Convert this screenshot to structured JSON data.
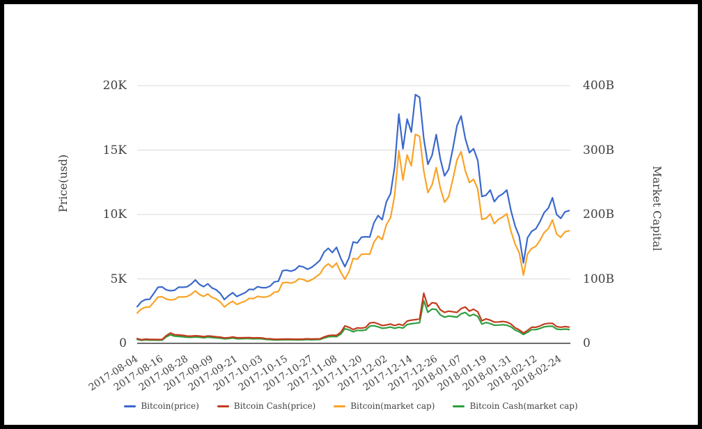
{
  "chart_data": {
    "type": "line",
    "title": "",
    "xlabel": "",
    "ylabel_left": "Price(usd)",
    "ylabel_right": "Market Capital",
    "grid": true,
    "legend_position": "bottom",
    "colors": {
      "bitcoin_price": "#3a68cc",
      "bitcoin_cash_price": "#c23b1c",
      "bitcoin_market_cap": "#f9a326",
      "bitcoin_cash_market_cap": "#2d9e3e",
      "gridline": "#d9d9d9",
      "axis_line": "#3c3c3c",
      "text": "#3f3f3f"
    },
    "left_axis": {
      "min": 0,
      "max": 20000,
      "ticks": [
        {
          "label": "0",
          "value": 0
        },
        {
          "label": "5K",
          "value": 5000
        },
        {
          "label": "10K",
          "value": 10000
        },
        {
          "label": "15K",
          "value": 15000
        },
        {
          "label": "20K",
          "value": 20000
        }
      ]
    },
    "right_axis": {
      "min": 0,
      "max": 400,
      "ticks": [
        {
          "label": "0",
          "value": 0
        },
        {
          "label": "100B",
          "value": 100
        },
        {
          "label": "200B",
          "value": 200
        },
        {
          "label": "300B",
          "value": 300
        },
        {
          "label": "400B",
          "value": 400
        }
      ]
    },
    "x_tick_labels": [
      "2017-08-04",
      "2017-08-16",
      "2017-08-28",
      "2017-09-09",
      "2017-09-21",
      "2017-10-03",
      "2017-10-15",
      "2017-10-27",
      "2017-11-08",
      "2017-11-20",
      "2017-12-02",
      "2017-12-14",
      "2017-12-26",
      "2018-01-07",
      "2018-01-19",
      "2018-01-31",
      "2018-02-12",
      "2018-02-24"
    ],
    "x_dates": [
      "2017-08-04",
      "2017-08-06",
      "2017-08-08",
      "2017-08-10",
      "2017-08-12",
      "2017-08-14",
      "2017-08-16",
      "2017-08-18",
      "2017-08-20",
      "2017-08-22",
      "2017-08-24",
      "2017-08-26",
      "2017-08-28",
      "2017-08-30",
      "2017-09-01",
      "2017-09-03",
      "2017-09-05",
      "2017-09-07",
      "2017-09-09",
      "2017-09-11",
      "2017-09-13",
      "2017-09-15",
      "2017-09-17",
      "2017-09-19",
      "2017-09-21",
      "2017-09-23",
      "2017-09-25",
      "2017-09-27",
      "2017-09-29",
      "2017-10-01",
      "2017-10-03",
      "2017-10-05",
      "2017-10-07",
      "2017-10-09",
      "2017-10-11",
      "2017-10-13",
      "2017-10-15",
      "2017-10-17",
      "2017-10-19",
      "2017-10-21",
      "2017-10-23",
      "2017-10-25",
      "2017-10-27",
      "2017-10-29",
      "2017-10-31",
      "2017-11-02",
      "2017-11-04",
      "2017-11-06",
      "2017-11-08",
      "2017-11-10",
      "2017-11-12",
      "2017-11-14",
      "2017-11-16",
      "2017-11-18",
      "2017-11-20",
      "2017-11-22",
      "2017-11-24",
      "2017-11-26",
      "2017-11-28",
      "2017-11-30",
      "2017-12-02",
      "2017-12-04",
      "2017-12-06",
      "2017-12-08",
      "2017-12-10",
      "2017-12-12",
      "2017-12-14",
      "2017-12-16",
      "2017-12-18",
      "2017-12-20",
      "2017-12-22",
      "2017-12-24",
      "2017-12-26",
      "2017-12-28",
      "2017-12-30",
      "2018-01-01",
      "2018-01-03",
      "2018-01-05",
      "2018-01-07",
      "2018-01-09",
      "2018-01-11",
      "2018-01-13",
      "2018-01-15",
      "2018-01-17",
      "2018-01-19",
      "2018-01-21",
      "2018-01-23",
      "2018-01-25",
      "2018-01-27",
      "2018-01-29",
      "2018-01-31",
      "2018-02-02",
      "2018-02-04",
      "2018-02-06",
      "2018-02-08",
      "2018-02-10",
      "2018-02-12",
      "2018-02-14",
      "2018-02-16",
      "2018-02-18",
      "2018-02-20",
      "2018-02-22",
      "2018-02-24",
      "2018-02-26",
      "2018-02-28"
    ],
    "series": [
      {
        "name": "Bitcoin(price)",
        "axis": "left",
        "color": "#3a68cc",
        "unit": "USD",
        "values": [
          2850,
          3230,
          3400,
          3420,
          3880,
          4350,
          4380,
          4150,
          4080,
          4120,
          4360,
          4350,
          4390,
          4600,
          4920,
          4580,
          4400,
          4620,
          4300,
          4160,
          3870,
          3400,
          3700,
          3930,
          3630,
          3790,
          3930,
          4200,
          4170,
          4400,
          4320,
          4320,
          4440,
          4770,
          4820,
          5640,
          5680,
          5600,
          5710,
          6010,
          5930,
          5750,
          5900,
          6150,
          6450,
          7080,
          7380,
          7050,
          7450,
          6620,
          5950,
          6640,
          7870,
          7790,
          8240,
          8270,
          8250,
          9350,
          9920,
          9600,
          10980,
          11620,
          13700,
          17800,
          15100,
          17400,
          16400,
          19300,
          19100,
          15900,
          13900,
          14600,
          16200,
          14300,
          13000,
          13500,
          15100,
          16900,
          17650,
          15900,
          14800,
          15100,
          14200,
          11400,
          11500,
          11900,
          11000,
          11400,
          11600,
          11900,
          10300,
          9100,
          8300,
          6250,
          8200,
          8700,
          8900,
          9450,
          10150,
          10500,
          11300,
          10000,
          9700,
          10200,
          10300
        ]
      },
      {
        "name": "Bitcoin Cash(price)",
        "axis": "left",
        "color": "#c23b1c",
        "unit": "USD",
        "values": [
          370,
          280,
          330,
          300,
          300,
          295,
          300,
          600,
          800,
          670,
          650,
          620,
          570,
          560,
          590,
          570,
          520,
          580,
          550,
          510,
          480,
          420,
          440,
          500,
          430,
          430,
          440,
          450,
          420,
          430,
          420,
          360,
          350,
          320,
          320,
          330,
          330,
          330,
          320,
          320,
          330,
          350,
          330,
          345,
          350,
          490,
          600,
          630,
          620,
          850,
          1350,
          1250,
          1070,
          1200,
          1180,
          1230,
          1580,
          1620,
          1520,
          1380,
          1420,
          1500,
          1380,
          1480,
          1400,
          1730,
          1800,
          1840,
          1900,
          3900,
          2850,
          3150,
          3100,
          2600,
          2400,
          2500,
          2450,
          2400,
          2700,
          2820,
          2500,
          2650,
          2450,
          1750,
          1900,
          1800,
          1650,
          1660,
          1700,
          1650,
          1500,
          1200,
          1050,
          800,
          1000,
          1250,
          1250,
          1350,
          1500,
          1550,
          1550,
          1300,
          1250,
          1300,
          1260
        ]
      },
      {
        "name": "Bitcoin(market cap)",
        "axis": "right",
        "color": "#f9a326",
        "unit": "B USD",
        "values": [
          47,
          53.3,
          56.1,
          56.4,
          64,
          71.8,
          72.3,
          68.6,
          67.4,
          68.1,
          72.1,
          71.9,
          72.6,
          76.1,
          81.4,
          75.8,
          72.9,
          76.6,
          71.3,
          69,
          64.2,
          56.5,
          61.5,
          65.3,
          60.4,
          63.1,
          65.4,
          69.9,
          69.4,
          73.1,
          71.8,
          71.9,
          73.9,
          79.4,
          80.3,
          94,
          94.7,
          93.4,
          95.3,
          100.3,
          99,
          96,
          98.6,
          102.8,
          107.8,
          118.2,
          123.3,
          117.8,
          124.6,
          110.7,
          99.6,
          111.2,
          131.8,
          130.6,
          138.2,
          138.7,
          138.4,
          156.9,
          166.5,
          161.1,
          184.2,
          195,
          229.9,
          298.8,
          253.6,
          292.3,
          275.6,
          324.5,
          321.3,
          267.6,
          234,
          245.9,
          272.9,
          241,
          219.1,
          227.4,
          254.4,
          284.8,
          297.5,
          268.1,
          249.6,
          254.7,
          239.6,
          192.4,
          194.1,
          200.9,
          185.8,
          192.6,
          196.1,
          201.2,
          174.2,
          153.9,
          140.4,
          105.8,
          138.8,
          147.3,
          150.8,
          160.1,
          172,
          178,
          191.6,
          169.6,
          164.6,
          173.1,
          174.8
        ]
      },
      {
        "name": "Bitcoin Cash(market cap)",
        "axis": "right",
        "color": "#2d9e3e",
        "unit": "B USD",
        "values": [
          6.1,
          4.6,
          5.4,
          5,
          5,
          4.9,
          5,
          9.9,
          13.2,
          11.1,
          10.7,
          10.2,
          9.4,
          9.3,
          9.8,
          9.4,
          8.6,
          9.6,
          9.1,
          8.5,
          8,
          7,
          7.3,
          8.3,
          7.1,
          7.1,
          7.3,
          7.5,
          7,
          7.2,
          7,
          6,
          5.8,
          5.3,
          5.3,
          5.5,
          5.5,
          5.5,
          5.4,
          5.4,
          5.5,
          5.9,
          5.5,
          5.8,
          5.9,
          8.2,
          10.1,
          10.6,
          10.4,
          14.3,
          22.7,
          21,
          18,
          20.2,
          19.9,
          20.7,
          26.6,
          27.3,
          25.6,
          23.3,
          24,
          25.3,
          23.3,
          25,
          23.7,
          29.2,
          30.4,
          31.1,
          32.1,
          66,
          48.2,
          53.3,
          52.5,
          44.1,
          40.7,
          42.4,
          41.6,
          40.7,
          45.8,
          47.9,
          42.5,
          45,
          41.7,
          29.8,
          32.3,
          30.6,
          28.1,
          28.3,
          29,
          28.1,
          25.6,
          20.5,
          17.9,
          13.7,
          17.1,
          21.3,
          21.3,
          23.1,
          25.6,
          26.5,
          26.5,
          22.2,
          21.4,
          22.2,
          21.5
        ]
      }
    ]
  }
}
